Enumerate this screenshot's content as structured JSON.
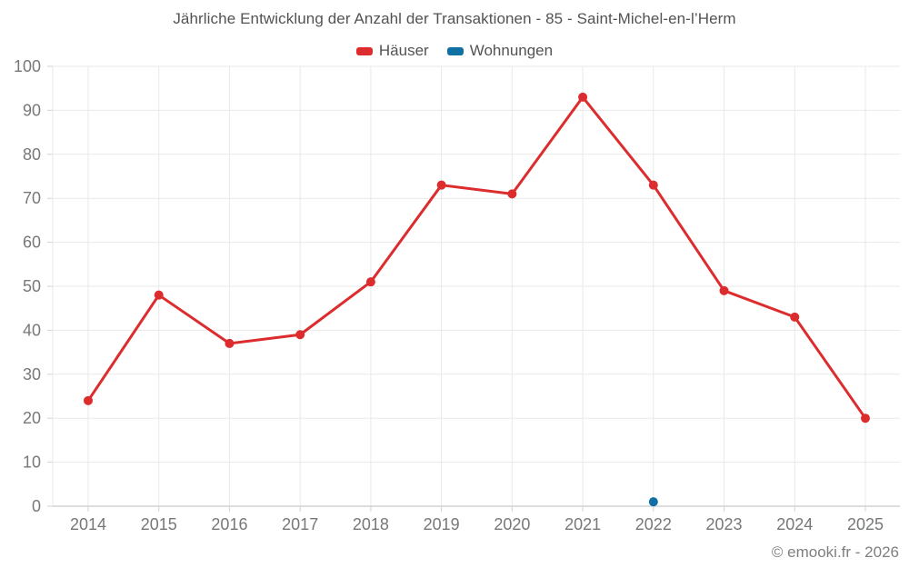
{
  "chart_data": {
    "type": "line",
    "title": "Jährliche Entwicklung der Anzahl der Transaktionen - 85 - Saint-Michel-en-l’Herm",
    "categories": [
      "2014",
      "2015",
      "2016",
      "2017",
      "2018",
      "2019",
      "2020",
      "2021",
      "2022",
      "2023",
      "2024",
      "2025"
    ],
    "series": [
      {
        "name": "Häuser",
        "color": "#dc2c2e",
        "values": [
          24,
          48,
          37,
          39,
          51,
          73,
          71,
          93,
          73,
          49,
          43,
          20
        ]
      },
      {
        "name": "Wohnungen",
        "color": "#106fa3",
        "values": [
          null,
          null,
          null,
          null,
          null,
          null,
          null,
          null,
          1,
          null,
          null,
          null
        ]
      }
    ],
    "xlabel": "",
    "ylabel": "",
    "ylim": [
      0,
      100
    ],
    "ytick_step": 10,
    "grid": true,
    "legend_position": "top"
  },
  "footer": {
    "copyright": "© emooki.fr - 2026"
  },
  "theme": {
    "grid_color": "#e9e9e9",
    "axis_line_color": "#d2d2d2",
    "tick_color": "#d2d2d2",
    "axis_label_color": "#76787a",
    "text_color": "#525355",
    "background": "#ffffff"
  }
}
